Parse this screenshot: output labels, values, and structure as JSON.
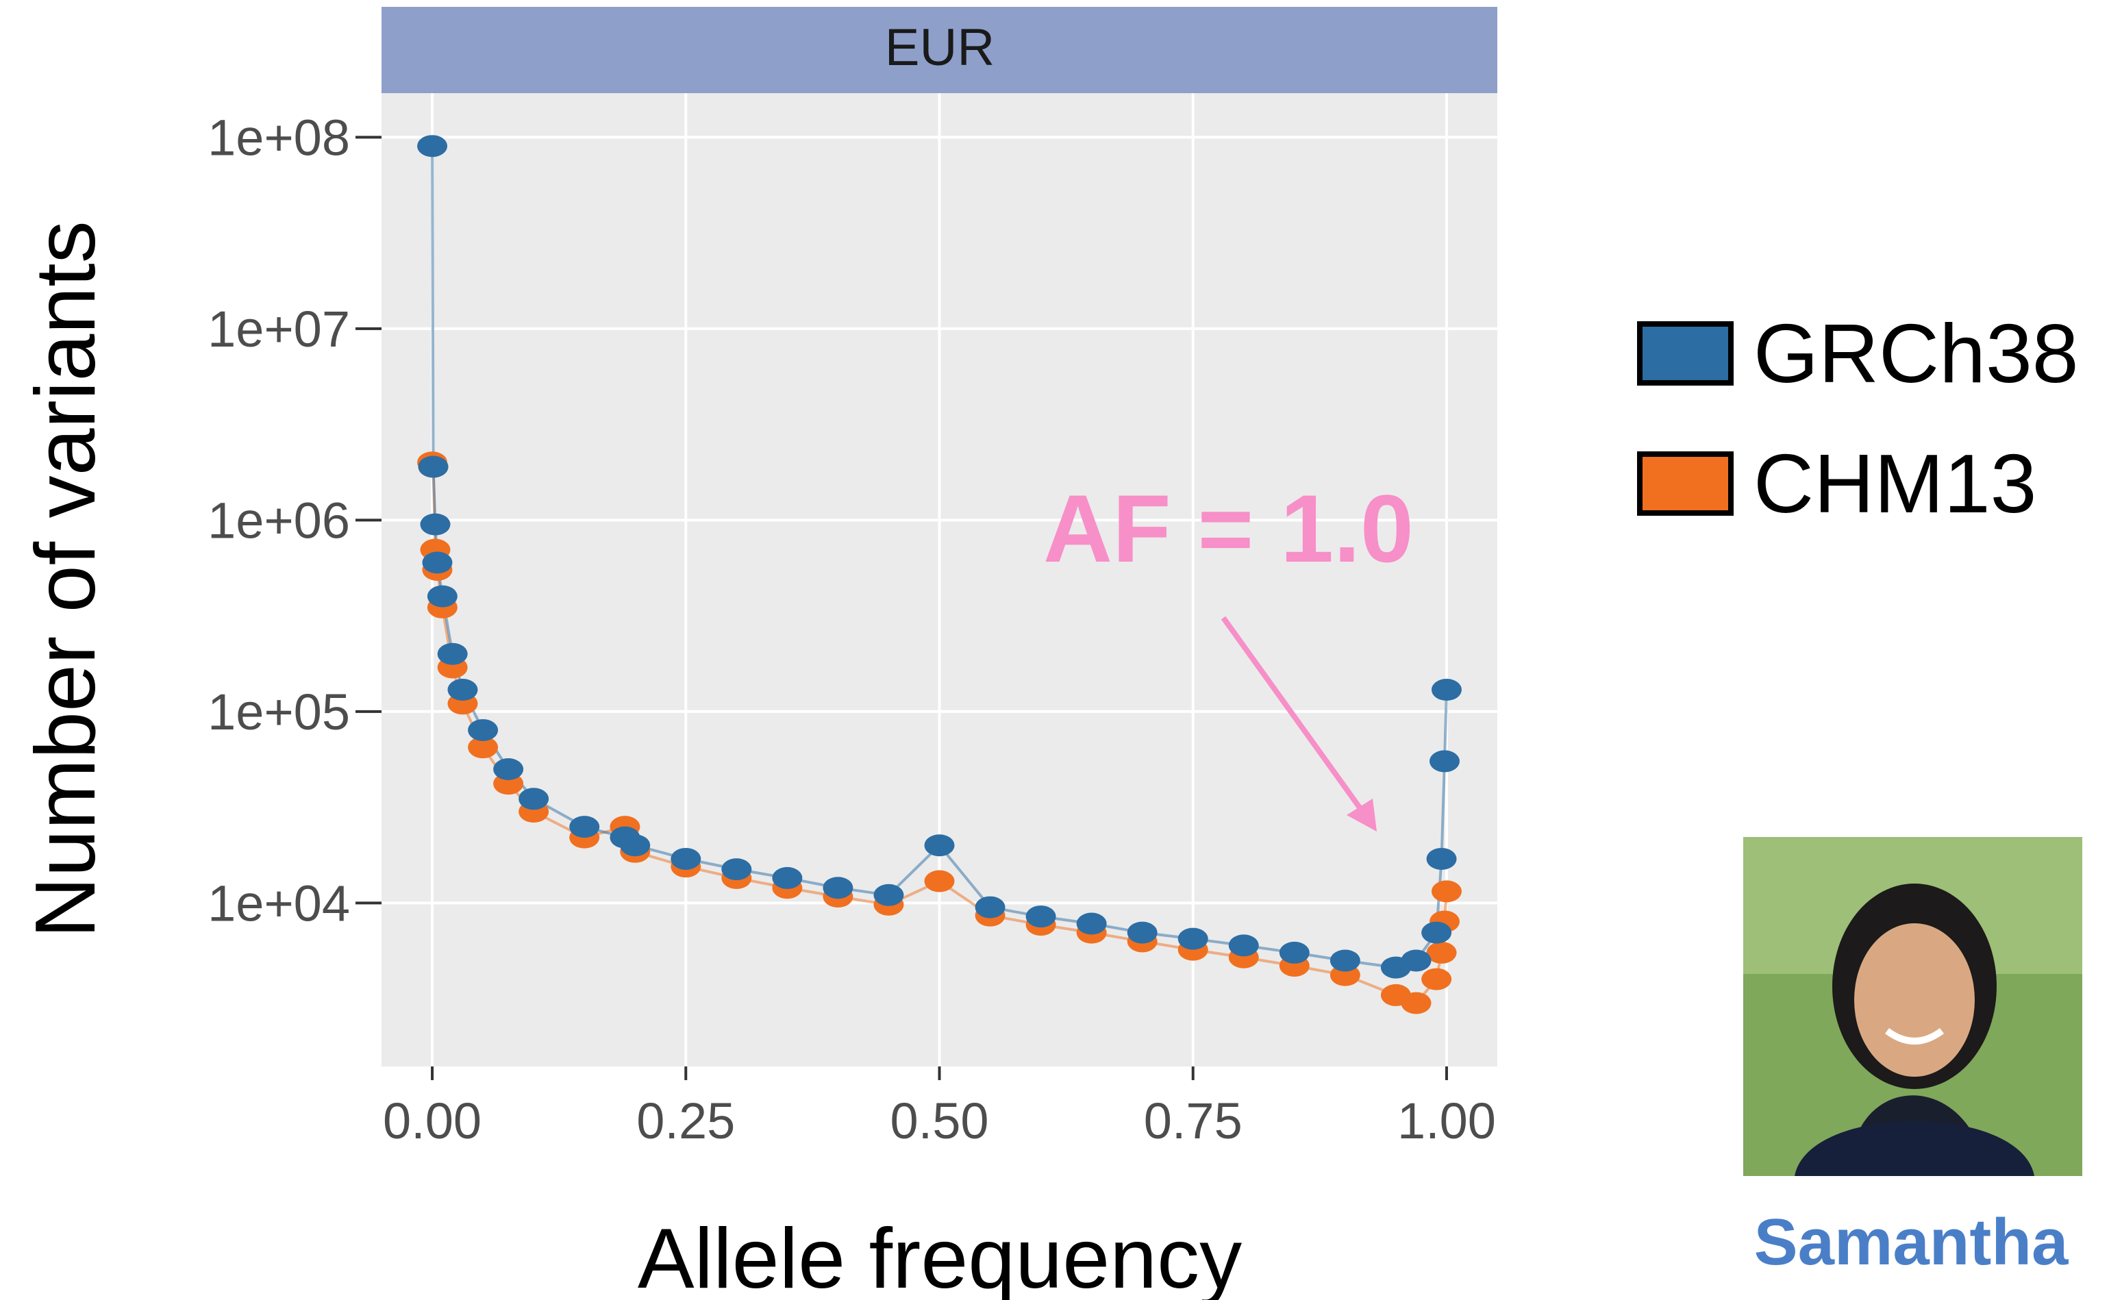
{
  "chart_data": {
    "type": "scatter",
    "facet": "EUR",
    "x_label": "Allele frequency",
    "y_label": "Number of variants",
    "yscale": "log",
    "grid": true,
    "legend": "right",
    "xlim": [
      -0.05,
      1.05
    ],
    "ylim": [
      1400,
      170000000
    ],
    "xticks": [
      {
        "value": 0,
        "label": "0.00"
      },
      {
        "value": 0.25,
        "label": "0.25"
      },
      {
        "value": 0.5,
        "label": "0.50"
      },
      {
        "value": 0.75,
        "label": "0.75"
      },
      {
        "value": 1,
        "label": "1.00"
      }
    ],
    "yticks": [
      {
        "value": 10000,
        "label": "1e+04"
      },
      {
        "value": 100000,
        "label": "1e+05"
      },
      {
        "value": 1000000,
        "label": "1e+06"
      },
      {
        "value": 10000000,
        "label": "1e+07"
      },
      {
        "value": 100000000,
        "label": "1e+08"
      }
    ],
    "x": [
      0,
      0.001,
      0.003,
      0.005,
      0.01,
      0.02,
      0.03,
      0.05,
      0.075,
      0.1,
      0.15,
      0.19,
      0.2,
      0.25,
      0.3,
      0.35,
      0.4,
      0.45,
      0.5,
      0.55,
      0.6,
      0.65,
      0.7,
      0.75,
      0.8,
      0.85,
      0.9,
      0.95,
      0.97,
      0.99,
      0.995,
      0.998,
      1.0
    ],
    "series": [
      {
        "name": "GRCh38",
        "color": "#2C6DA4",
        "values": [
          90000000,
          1900000,
          950000,
          600000,
          400000,
          200000,
          130000,
          80000,
          50000,
          35000,
          25000,
          22000,
          20000,
          17000,
          15000,
          13500,
          12000,
          11000,
          20000,
          9500,
          8500,
          7800,
          7000,
          6500,
          6000,
          5500,
          5000,
          4600,
          5000,
          7000,
          17000,
          55000,
          130000
        ]
      },
      {
        "name": "CHM13",
        "color": "#F07020",
        "values": [
          2000000,
          1900000,
          700000,
          550000,
          350000,
          170000,
          110000,
          65000,
          42000,
          30000,
          22000,
          25000,
          18500,
          15500,
          13500,
          12000,
          10800,
          9800,
          13000,
          8600,
          7700,
          7000,
          6300,
          5700,
          5200,
          4700,
          4200,
          3300,
          3000,
          4000,
          5500,
          8000,
          11500
        ]
      }
    ],
    "annotation": "AF = 1.0"
  },
  "person": {
    "name": "Samantha"
  }
}
